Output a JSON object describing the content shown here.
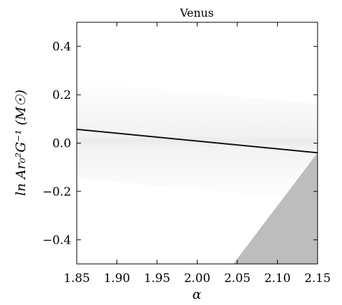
{
  "chart_data": {
    "type": "heatmap",
    "title": "Venus",
    "xlabel": "α",
    "ylabel": "ln Ar₀²G⁻¹ (M☉)",
    "xlim": [
      1.85,
      2.15
    ],
    "ylim": [
      -0.5,
      0.5
    ],
    "xticks": [
      1.85,
      1.9,
      1.95,
      2.0,
      2.05,
      2.1,
      2.15
    ],
    "xtick_labels": [
      "1.85",
      "1.90",
      "1.95",
      "2.00",
      "2.05",
      "2.10",
      "2.15"
    ],
    "yticks": [
      -0.4,
      -0.2,
      0.0,
      0.2,
      0.4
    ],
    "ytick_labels": [
      "−0.4",
      "−0.2",
      "0.0",
      "0.2",
      "0.4"
    ],
    "ridge_line": {
      "x": [
        1.85,
        2.15
      ],
      "y": [
        0.057,
        -0.04
      ]
    },
    "excluded_region": {
      "x": [
        2.045,
        2.15,
        2.15
      ],
      "y": [
        -0.5,
        -0.5,
        -0.04
      ]
    },
    "colors": {
      "ridge": "#111111",
      "excluded": "#bdbdbd",
      "background": "#ffffff"
    }
  }
}
